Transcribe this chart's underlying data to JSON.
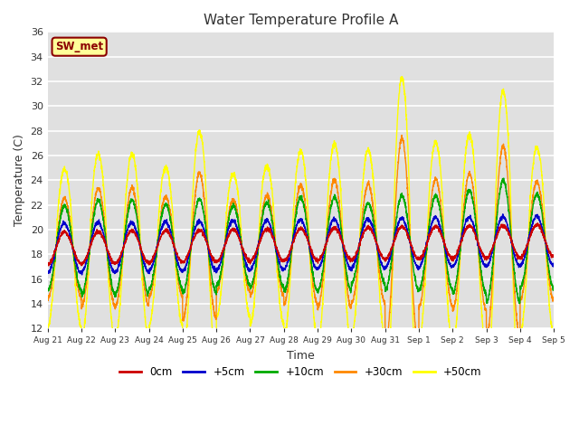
{
  "title": "Water Temperature Profile A",
  "xlabel": "Time",
  "ylabel": "Temperature (C)",
  "ylim": [
    12,
    36
  ],
  "yticks": [
    12,
    14,
    16,
    18,
    20,
    22,
    24,
    26,
    28,
    30,
    32,
    34,
    36
  ],
  "bg_color": "#e0e0e0",
  "grid_color": "white",
  "legend_label": "SW_met",
  "legend_box_color": "#ffff99",
  "legend_box_edge": "#8b0000",
  "line_colors": {
    "0cm": "#cc0000",
    "+5cm": "#0000cc",
    "+10cm": "#00aa00",
    "+30cm": "#ff8800",
    "+50cm": "#ffff00"
  },
  "xtick_labels": [
    "Aug 21",
    "Aug 22",
    "Aug 23",
    "Aug 24",
    "Aug 25",
    "Aug 26",
    "Aug 27",
    "Aug 28",
    "Aug 29",
    "Aug 30",
    "Aug 31",
    "Sep 1",
    "Sep 2",
    "Sep 3",
    "Sep 4",
    "Sep 5"
  ],
  "n_days": 15,
  "pts_per_day": 240
}
